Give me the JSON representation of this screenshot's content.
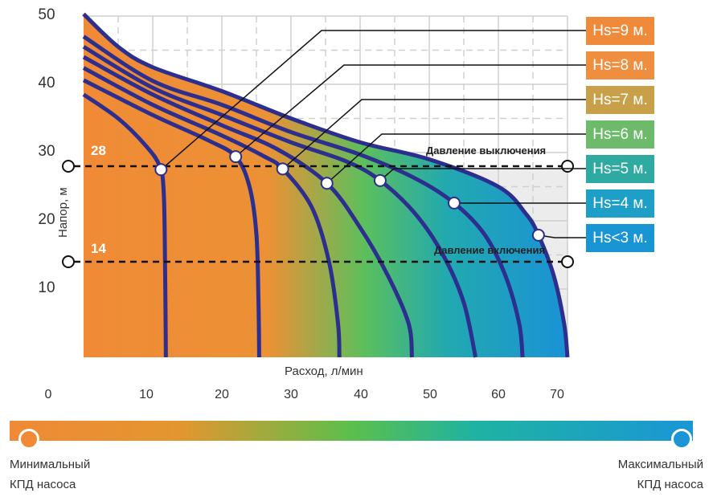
{
  "chart_data": {
    "type": "line",
    "xlabel": "Расход, л/мин",
    "ylabel": "Напор, м",
    "xlim": [
      0,
      70
    ],
    "ylim": [
      0,
      50
    ],
    "x_ticks": [
      "0",
      "10",
      "20",
      "30",
      "40",
      "50",
      "60",
      "70"
    ],
    "y_ticks": [
      "10",
      "20",
      "30",
      "40",
      "50"
    ],
    "grid": true,
    "fill": "gradient from orange (left) to blue (right) under curves",
    "series": [
      {
        "name": "Hs=9 м.",
        "color": "#ef8a3a",
        "marker": [
          11.2,
          27.5
        ],
        "points": [
          [
            0,
            38.5
          ],
          [
            5,
            35
          ],
          [
            9,
            31
          ],
          [
            11,
            28
          ],
          [
            11.6,
            24
          ],
          [
            11.8,
            12
          ],
          [
            11.9,
            0
          ]
        ]
      },
      {
        "name": "Hs=8 м.",
        "color": "#ee8e3e",
        "marker": [
          22,
          29.4
        ],
        "points": [
          [
            0,
            40.6
          ],
          [
            10,
            35.5
          ],
          [
            18,
            31.8
          ],
          [
            22,
            29.4
          ],
          [
            24,
            25
          ],
          [
            25,
            18
          ],
          [
            25.3,
            8
          ],
          [
            25.4,
            0
          ]
        ]
      },
      {
        "name": "Hs=7 м.",
        "color": "#c9a04a",
        "marker": [
          28.8,
          27.6
        ],
        "points": [
          [
            0,
            42.4
          ],
          [
            10,
            37
          ],
          [
            20,
            32.5
          ],
          [
            26,
            29.5
          ],
          [
            28.8,
            27.6
          ],
          [
            33,
            22
          ],
          [
            35.5,
            14
          ],
          [
            36.8,
            5
          ],
          [
            37,
            0
          ]
        ]
      },
      {
        "name": "Hs=6 м.",
        "color": "#6dbb6a",
        "marker": [
          35.2,
          25.5
        ],
        "points": [
          [
            0,
            44
          ],
          [
            10,
            38.5
          ],
          [
            20,
            34
          ],
          [
            28,
            30.5
          ],
          [
            35.2,
            25.5
          ],
          [
            40,
            19
          ],
          [
            44,
            12
          ],
          [
            47,
            5
          ],
          [
            47.5,
            0
          ]
        ]
      },
      {
        "name": "Hs=5 м.",
        "color": "#2eaaa0",
        "marker": [
          42.9,
          25.9
        ],
        "points": [
          [
            0,
            45.5
          ],
          [
            10,
            39.5
          ],
          [
            20,
            35.5
          ],
          [
            30,
            31.5
          ],
          [
            38,
            28.7
          ],
          [
            42.9,
            25.9
          ],
          [
            48,
            21
          ],
          [
            52,
            15
          ],
          [
            55,
            8
          ],
          [
            56.7,
            0
          ]
        ]
      },
      {
        "name": "Hs=4 м.",
        "color": "#1d9fc8",
        "marker": [
          53.6,
          22.6
        ],
        "points": [
          [
            0,
            47
          ],
          [
            10,
            40.5
          ],
          [
            20,
            37
          ],
          [
            30,
            33
          ],
          [
            40,
            29.7
          ],
          [
            48,
            26.2
          ],
          [
            53.6,
            22.6
          ],
          [
            58,
            18
          ],
          [
            61,
            12
          ],
          [
            63,
            5
          ],
          [
            63.5,
            0
          ]
        ]
      },
      {
        "name": "Hs<3 м.",
        "color": "#1a95d4",
        "marker": [
          65.8,
          17.9
        ],
        "points": [
          [
            0,
            50.3
          ],
          [
            5,
            45.5
          ],
          [
            10,
            42.5
          ],
          [
            20,
            39
          ],
          [
            30,
            35
          ],
          [
            40,
            31.5
          ],
          [
            50,
            29
          ],
          [
            60,
            25
          ],
          [
            64,
            21
          ],
          [
            65.8,
            17.9
          ],
          [
            68,
            12
          ],
          [
            69.5,
            5
          ],
          [
            70,
            0
          ]
        ]
      }
    ],
    "annotations": [
      {
        "value": 28,
        "label": "28",
        "text": "Давление выключения"
      },
      {
        "value": 14,
        "label": "14",
        "text": "Давление включения"
      }
    ]
  },
  "legend_bar": {
    "left_line1": "Минимальный",
    "left_line2": "КПД насоса",
    "right_line1": "Максимальный",
    "right_line2": "КПД насоса",
    "colors": [
      "#f08a36",
      "#5cbf4c",
      "#1a96d6"
    ]
  }
}
